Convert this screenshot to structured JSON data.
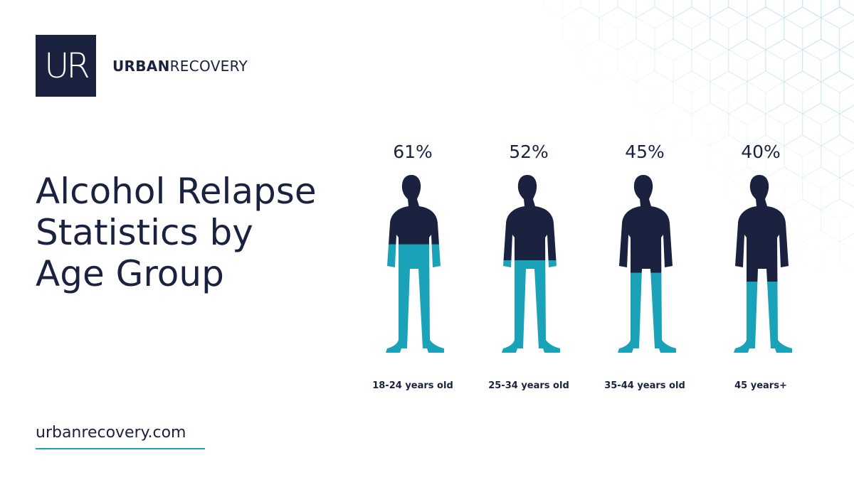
{
  "brand": {
    "logo_text": "UR",
    "name_bold": "URBAN",
    "name_regular": "RECOVERY"
  },
  "title": [
    "Alcohol Relapse",
    "Statistics by",
    "Age Group"
  ],
  "website": "urbanrecovery.com",
  "colors": {
    "navy": "#1b2240",
    "teal": "#1aa3b8",
    "hex_pattern": "#bfe3ea"
  },
  "chart_data": {
    "type": "bar",
    "categories": [
      "18-24 years old",
      "25-34 years old",
      "35-44 years old",
      "45 years+"
    ],
    "values": [
      61,
      52,
      45,
      40
    ],
    "value_labels": [
      "61%",
      "52%",
      "45%",
      "40%"
    ],
    "unit": "%",
    "ylim": [
      0,
      100
    ]
  }
}
